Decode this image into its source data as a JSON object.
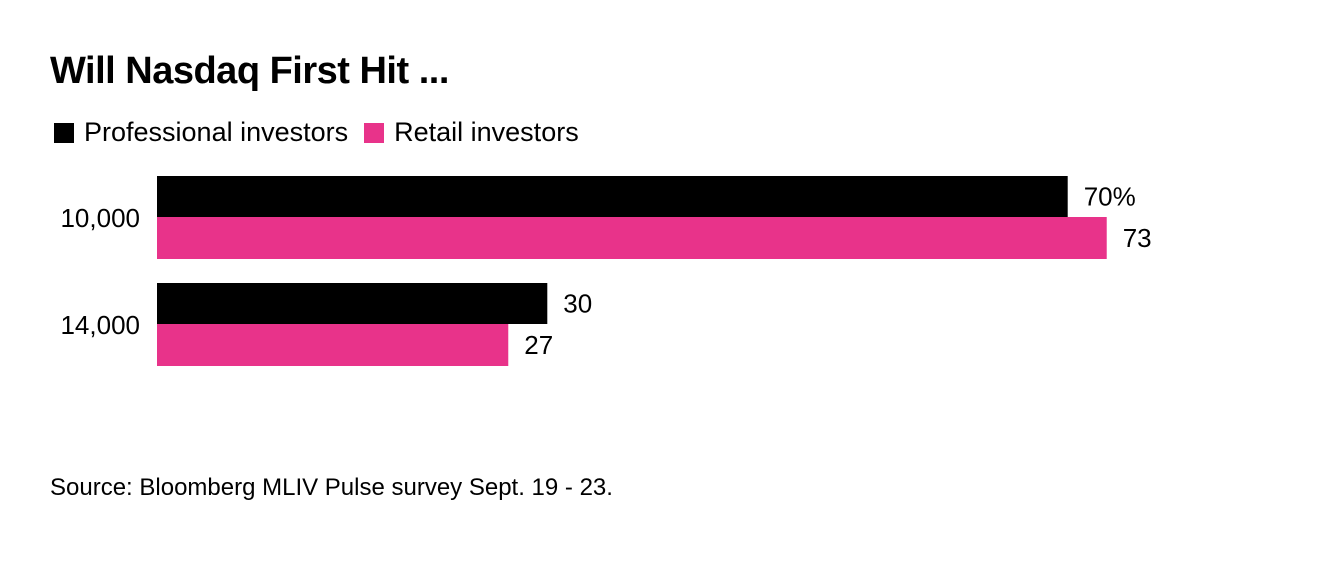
{
  "chart_data": {
    "type": "bar",
    "orientation": "horizontal",
    "title": "Will Nasdaq First Hit ...",
    "categories": [
      "10,000",
      "14,000"
    ],
    "series": [
      {
        "name": "Professional investors",
        "color": "#000000",
        "values": [
          70,
          30
        ],
        "labels": [
          "70%",
          "30"
        ]
      },
      {
        "name": "Retail investors",
        "color": "#e8338a",
        "values": [
          73,
          27
        ],
        "labels": [
          "73",
          "27"
        ]
      }
    ],
    "xlabel": "",
    "ylabel": "",
    "unit": "%",
    "xlim": [
      0,
      100
    ],
    "grid": false,
    "legend_position": "top-left",
    "source": "Source: Bloomberg MLIV Pulse survey Sept. 19 - 23."
  }
}
